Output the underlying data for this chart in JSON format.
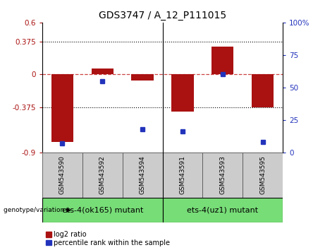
{
  "title": "GDS3747 / A_12_P111015",
  "samples": [
    "GSM543590",
    "GSM543592",
    "GSM543594",
    "GSM543591",
    "GSM543593",
    "GSM543595"
  ],
  "log2_ratio": [
    -0.78,
    0.07,
    -0.07,
    -0.43,
    0.32,
    -0.38
  ],
  "percentile_rank": [
    7,
    55,
    18,
    16,
    60,
    8
  ],
  "ylim_left": [
    -0.9,
    0.6
  ],
  "ylim_right": [
    0,
    100
  ],
  "yticks_left": [
    -0.9,
    -0.375,
    0,
    0.375,
    0.6
  ],
  "yticks_right": [
    0,
    25,
    50,
    75,
    100
  ],
  "ytick_labels_left": [
    "-0.9",
    "-0.375",
    "0",
    "0.375",
    "0.6"
  ],
  "ytick_labels_right": [
    "0",
    "25",
    "50",
    "75",
    "100%"
  ],
  "hlines": [
    0.375,
    -0.375
  ],
  "bar_color": "#aa1111",
  "dot_color": "#2233bb",
  "zero_line_color": "#cc4444",
  "group1_label": "ets-4(ok165) mutant",
  "group2_label": "ets-4(uz1) mutant",
  "group_bg_color": "#77dd77",
  "sample_bg_color": "#cccccc",
  "legend_red_label": "log2 ratio",
  "legend_blue_label": "percentile rank within the sample",
  "bar_width": 0.55,
  "title_fontsize": 10,
  "tick_fontsize": 7.5,
  "sample_fontsize": 6.5,
  "group_fontsize": 8,
  "legend_fontsize": 7
}
